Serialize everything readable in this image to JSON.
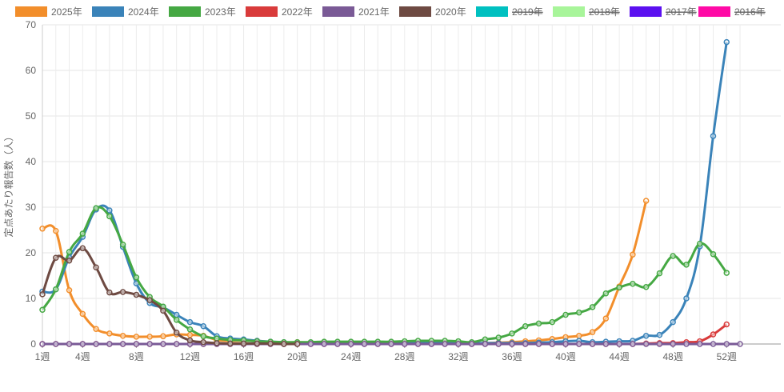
{
  "chart_data": {
    "type": "line",
    "ylabel": "定点あたり報告数（人）",
    "xlabel": "",
    "ylim": [
      0,
      70
    ],
    "yticks": [
      0,
      10,
      20,
      30,
      40,
      50,
      60,
      70
    ],
    "xticks": [
      1,
      4,
      8,
      12,
      16,
      20,
      24,
      28,
      32,
      36,
      40,
      44,
      48,
      52
    ],
    "xtick_suffix": "週",
    "xlim": [
      1,
      53
    ],
    "grid": true,
    "legend_position": "top",
    "series": [
      {
        "name": "2025年",
        "color": "#f28e2b",
        "visible": true,
        "x": [
          1,
          2,
          3,
          4,
          5,
          6,
          7,
          8,
          9,
          10,
          11,
          12,
          13,
          14,
          15,
          16,
          17,
          18,
          19,
          20,
          21,
          22,
          23,
          24,
          25,
          26,
          27,
          28,
          29,
          30,
          31,
          32,
          33,
          34,
          35,
          36,
          37,
          38,
          39,
          40,
          41,
          42,
          43,
          44,
          45,
          46
        ],
        "values": [
          25.3,
          24.8,
          11.8,
          6.6,
          3.3,
          2.3,
          1.8,
          1.6,
          1.6,
          1.7,
          2.1,
          2.0,
          1.8,
          0.9,
          0.7,
          0.7,
          0.7,
          0.4,
          0.3,
          0.4,
          0.3,
          0.3,
          0.2,
          0.2,
          0.2,
          0.2,
          0.2,
          0.2,
          0.2,
          0.2,
          0.1,
          0.1,
          0.1,
          0.2,
          0.3,
          0.4,
          0.6,
          0.8,
          1.1,
          1.5,
          1.8,
          2.6,
          5.6,
          12.6,
          19.6,
          31.4
        ]
      },
      {
        "name": "2024年",
        "color": "#3a83b9",
        "visible": true,
        "x": [
          1,
          2,
          3,
          4,
          5,
          6,
          7,
          8,
          9,
          10,
          11,
          12,
          13,
          14,
          15,
          16,
          17,
          18,
          19,
          20,
          21,
          22,
          23,
          24,
          25,
          26,
          27,
          28,
          29,
          30,
          31,
          32,
          33,
          34,
          35,
          36,
          37,
          38,
          39,
          40,
          41,
          42,
          43,
          44,
          45,
          46,
          47,
          48,
          49,
          50,
          51,
          52
        ],
        "values": [
          11.5,
          12.0,
          19.0,
          23.5,
          29.5,
          29.3,
          21.3,
          13.3,
          9.0,
          8.0,
          6.4,
          4.8,
          3.9,
          1.7,
          1.2,
          1.0,
          0.7,
          0.5,
          0.4,
          0.3,
          0.3,
          0.2,
          0.2,
          0.2,
          0.2,
          0.2,
          0.2,
          0.2,
          0.2,
          0.2,
          0.2,
          0.2,
          0.2,
          0.2,
          0.2,
          0.2,
          0.2,
          0.3,
          0.4,
          0.6,
          0.7,
          0.4,
          0.5,
          0.6,
          0.7,
          1.8,
          2.0,
          4.8,
          10.0,
          21.4,
          45.6,
          66.2
        ]
      },
      {
        "name": "2023年",
        "color": "#45a843",
        "visible": true,
        "x": [
          1,
          2,
          3,
          4,
          5,
          6,
          7,
          8,
          9,
          10,
          11,
          12,
          13,
          14,
          15,
          16,
          17,
          18,
          19,
          20,
          21,
          22,
          23,
          24,
          25,
          26,
          27,
          28,
          29,
          30,
          31,
          32,
          33,
          34,
          35,
          36,
          37,
          38,
          39,
          40,
          41,
          42,
          43,
          44,
          45,
          46,
          47,
          48,
          49,
          50,
          51,
          52
        ],
        "values": [
          7.5,
          12.0,
          20.2,
          24.2,
          29.8,
          28.0,
          21.8,
          14.6,
          10.3,
          8.2,
          5.3,
          3.2,
          1.7,
          1.2,
          0.9,
          0.8,
          0.6,
          0.5,
          0.4,
          0.4,
          0.4,
          0.5,
          0.5,
          0.5,
          0.5,
          0.5,
          0.5,
          0.6,
          0.7,
          0.7,
          0.7,
          0.6,
          0.4,
          1.0,
          1.4,
          2.3,
          3.9,
          4.5,
          4.8,
          6.4,
          6.9,
          8.1,
          11.1,
          12.4,
          13.2,
          12.5,
          15.5,
          19.3,
          17.4,
          22.0,
          19.7,
          15.6
        ]
      },
      {
        "name": "2022年",
        "color": "#d93b3b",
        "visible": true,
        "x": [
          1,
          2,
          3,
          4,
          5,
          6,
          7,
          8,
          9,
          10,
          11,
          12,
          13,
          14,
          15,
          16,
          17,
          18,
          19,
          20,
          21,
          22,
          23,
          24,
          25,
          26,
          27,
          28,
          29,
          30,
          31,
          32,
          33,
          34,
          35,
          36,
          37,
          38,
          39,
          40,
          41,
          42,
          43,
          44,
          45,
          46,
          47,
          48,
          49,
          50,
          51,
          52
        ],
        "values": [
          0,
          0,
          0,
          0,
          0,
          0,
          0,
          0,
          0,
          0,
          0,
          0,
          0,
          0,
          0,
          0,
          0,
          0,
          0,
          0,
          0,
          0,
          0,
          0,
          0,
          0,
          0,
          0,
          0,
          0,
          0,
          0,
          0,
          0,
          0,
          0,
          0,
          0,
          0,
          0,
          0,
          0,
          0,
          0,
          0,
          0.1,
          0.2,
          0.2,
          0.4,
          0.6,
          2.1,
          4.3
        ]
      },
      {
        "name": "2021年",
        "color": "#7a5a96",
        "visible": true,
        "x": [
          1,
          2,
          3,
          4,
          5,
          6,
          7,
          8,
          9,
          10,
          11,
          12,
          13,
          14,
          15,
          16,
          17,
          18,
          19,
          20,
          21,
          22,
          23,
          24,
          25,
          26,
          27,
          28,
          29,
          30,
          31,
          32,
          33,
          34,
          35,
          36,
          37,
          38,
          39,
          40,
          41,
          42,
          43,
          44,
          45,
          46,
          47,
          48,
          49,
          50,
          51,
          52,
          53
        ],
        "values": [
          0,
          0,
          0,
          0,
          0,
          0,
          0,
          0,
          0,
          0,
          0,
          0,
          0,
          0,
          0,
          0,
          0,
          0,
          0,
          0,
          0,
          0,
          0,
          0,
          0,
          0,
          0,
          0,
          0,
          0,
          0,
          0,
          0,
          0,
          0,
          0,
          0,
          0,
          0,
          0,
          0,
          0,
          0,
          0,
          0,
          0,
          0,
          0,
          0,
          0,
          0,
          0,
          0
        ]
      },
      {
        "name": "2020年",
        "color": "#6e4a42",
        "visible": true,
        "x": [
          1,
          2,
          3,
          4,
          5,
          6,
          7,
          8,
          9,
          10,
          11,
          12,
          13,
          14,
          15,
          16,
          17,
          18,
          19,
          20
        ],
        "values": [
          10.9,
          18.9,
          18.3,
          21.0,
          16.8,
          11.3,
          11.4,
          10.8,
          9.6,
          7.3,
          2.5,
          0.8,
          0.4,
          0.2,
          0.1,
          0.1,
          0.1,
          0.1,
          0,
          0
        ]
      },
      {
        "name": "2019年",
        "color": "#00c0c0",
        "visible": false,
        "x": [],
        "values": []
      },
      {
        "name": "2018年",
        "color": "#a8f59a",
        "visible": false,
        "x": [],
        "values": []
      },
      {
        "name": "2017年",
        "color": "#5b10f0",
        "visible": false,
        "x": [],
        "values": []
      },
      {
        "name": "2016年",
        "color": "#ff0aa6",
        "visible": false,
        "x": [],
        "values": []
      }
    ]
  }
}
